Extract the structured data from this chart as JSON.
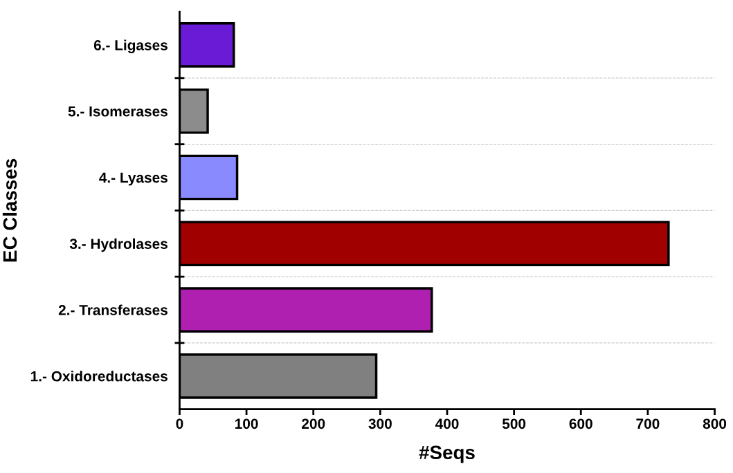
{
  "chart_data": {
    "type": "bar",
    "orientation": "horizontal",
    "categories": [
      "6.- Ligases",
      "5.- Isomerases",
      "4.- Lyases",
      "3.- Hydrolases",
      "2.- Transferases",
      "1.- Oxidoreductases"
    ],
    "values": [
      81,
      42,
      86,
      731,
      377,
      294
    ],
    "colors": [
      "#6a1bd6",
      "#8c8c8c",
      "#8a8aff",
      "#a00000",
      "#b020b0",
      "#808080"
    ],
    "xlabel": "#Seqs",
    "ylabel": "EC Classes",
    "xlim": [
      0,
      800
    ],
    "xticks": [
      0,
      100,
      200,
      300,
      400,
      500,
      600,
      700,
      800
    ],
    "grid": "y"
  }
}
